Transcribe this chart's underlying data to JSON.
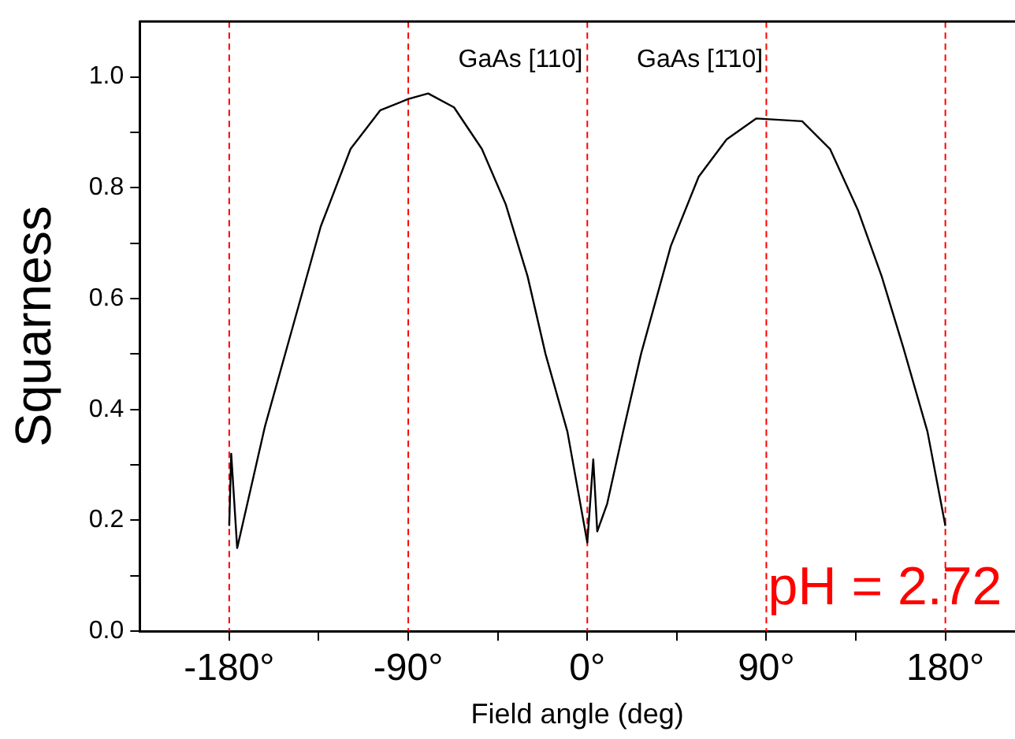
{
  "chart_data": {
    "type": "line",
    "xlabel": "Field angle (deg)",
    "ylabel": "Squarness",
    "annotations": [
      "GaAs [110]",
      "GaAs [1̄10]",
      "pH = 2.72"
    ],
    "xlim": [
      -225,
      215
    ],
    "xticks": [
      {
        "value": -180,
        "label": "-180°"
      },
      {
        "value": -135,
        "label": null
      },
      {
        "value": -90,
        "label": "-90°"
      },
      {
        "value": -45,
        "label": null
      },
      {
        "value": 0,
        "label": "0°"
      },
      {
        "value": 45,
        "label": null
      },
      {
        "value": 90,
        "label": "90°"
      },
      {
        "value": 135,
        "label": null
      },
      {
        "value": 180,
        "label": "180°"
      }
    ],
    "ylim": [
      0,
      1.1
    ],
    "yticks": [
      {
        "value": 0,
        "label": "0.0"
      },
      {
        "value": 0.1,
        "label": null
      },
      {
        "value": 0.2,
        "label": "0.2"
      },
      {
        "value": 0.3,
        "label": null
      },
      {
        "value": 0.4,
        "label": "0.4"
      },
      {
        "value": 0.5,
        "label": null
      },
      {
        "value": 0.6,
        "label": "0.6"
      },
      {
        "value": 0.7,
        "label": null
      },
      {
        "value": 0.8,
        "label": "0.8"
      },
      {
        "value": 0.9,
        "label": null
      },
      {
        "value": 1,
        "label": "1.0"
      }
    ],
    "ref_lines": [
      {
        "axis": "x",
        "value": -180,
        "color": "#ff0000",
        "line_style": "dashed"
      },
      {
        "axis": "x",
        "value": -90,
        "color": "#ff0000",
        "line_style": "dashed"
      },
      {
        "axis": "x",
        "value": 0,
        "color": "#ff0000",
        "line_style": "dashed"
      },
      {
        "axis": "x",
        "value": 90,
        "color": "#ff0000",
        "line_style": "dashed"
      },
      {
        "axis": "x",
        "value": 180,
        "color": "#ff0000",
        "line_style": "dashed"
      }
    ],
    "grid": false,
    "legend": false,
    "marker": "none",
    "line_style": "solid",
    "series": [
      {
        "color": "#000000",
        "x": [
          -180,
          -179,
          -176,
          -162,
          -148,
          -134,
          -119,
          -104,
          -90,
          -80,
          -67,
          -53,
          -41,
          -30,
          -21,
          -10,
          0,
          3,
          5,
          10,
          18,
          27,
          42,
          56,
          70,
          85,
          108,
          122,
          136,
          148,
          159,
          171,
          180
        ],
        "values": [
          0.19,
          0.32,
          0.15,
          0.37,
          0.55,
          0.73,
          0.87,
          0.94,
          0.96,
          0.97,
          0.945,
          0.87,
          0.77,
          0.64,
          0.5,
          0.36,
          0.16,
          0.31,
          0.18,
          0.23,
          0.36,
          0.5,
          0.695,
          0.82,
          0.887,
          0.925,
          0.92,
          0.87,
          0.76,
          0.64,
          0.51,
          0.36,
          0.19
        ]
      }
    ]
  }
}
